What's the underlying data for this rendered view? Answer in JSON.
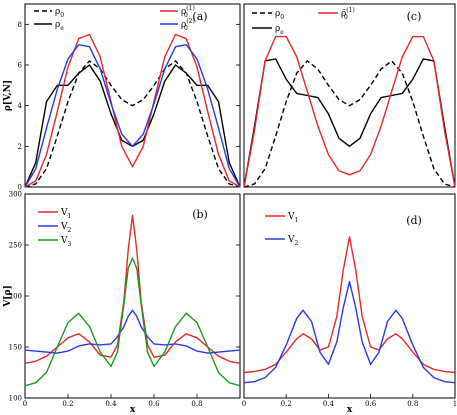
{
  "chart_data": [
    {
      "panel": "(a)",
      "type": "line",
      "xlim": [
        0,
        1
      ],
      "ylim": [
        0,
        9
      ],
      "xticks": [],
      "yticks": [
        0,
        2,
        4,
        6,
        8
      ],
      "ytick_labels": [
        "0",
        "2",
        "4",
        "6",
        "8"
      ],
      "ylabel": "ρ[V,N]",
      "xlabel": "",
      "legend": [
        {
          "label": "ρ",
          "sub": "0",
          "sup": "",
          "style": "dashed",
          "color": "#000000"
        },
        {
          "label": "ρ",
          "sub": "e",
          "sup": "",
          "style": "solid",
          "color": "#000000"
        },
        {
          "label": "ρ",
          "sub": "0",
          "sup": "(1)",
          "style": "solid",
          "color": "#e8272a"
        },
        {
          "label": "ρ",
          "sub": "0",
          "sup": "(2)",
          "style": "solid",
          "color": "#2a3ae0"
        }
      ],
      "series": [
        {
          "style": "dashed",
          "color": "#000000",
          "x": [
            0,
            0.05,
            0.1,
            0.15,
            0.2,
            0.25,
            0.3,
            0.35,
            0.4,
            0.45,
            0.5,
            0.55,
            0.6,
            0.65,
            0.7,
            0.75,
            0.8,
            0.85,
            0.9,
            0.95,
            1
          ],
          "y": [
            0,
            0.15,
            0.9,
            2.5,
            4.2,
            5.6,
            6.2,
            5.8,
            5.0,
            4.3,
            4.0,
            4.3,
            5.0,
            5.8,
            6.2,
            5.6,
            4.2,
            2.5,
            0.9,
            0.15,
            0
          ]
        },
        {
          "style": "solid",
          "color": "#000000",
          "x": [
            0,
            0.05,
            0.1,
            0.15,
            0.2,
            0.25,
            0.3,
            0.35,
            0.4,
            0.45,
            0.5,
            0.55,
            0.6,
            0.65,
            0.7,
            0.75,
            0.8,
            0.85,
            0.9,
            0.95,
            1
          ],
          "y": [
            0,
            1.2,
            4.2,
            5.0,
            5.0,
            5.6,
            6.0,
            5.2,
            3.6,
            2.3,
            2.0,
            2.3,
            3.6,
            5.2,
            6.0,
            5.6,
            5.0,
            5.0,
            4.2,
            1.2,
            0
          ]
        },
        {
          "style": "solid",
          "color": "#e8272a",
          "x": [
            0,
            0.05,
            0.1,
            0.15,
            0.2,
            0.25,
            0.3,
            0.35,
            0.4,
            0.45,
            0.5,
            0.55,
            0.6,
            0.65,
            0.7,
            0.75,
            0.8,
            0.85,
            0.9,
            0.95,
            1
          ],
          "y": [
            0,
            0.3,
            1.6,
            3.7,
            5.9,
            7.3,
            7.5,
            6.4,
            4.2,
            2.0,
            1.0,
            2.0,
            4.2,
            6.4,
            7.5,
            7.3,
            5.9,
            3.7,
            1.6,
            0.3,
            0
          ]
        },
        {
          "style": "solid",
          "color": "#2a3ae0",
          "x": [
            0,
            0.05,
            0.1,
            0.15,
            0.2,
            0.25,
            0.3,
            0.35,
            0.4,
            0.45,
            0.5,
            0.55,
            0.6,
            0.65,
            0.7,
            0.75,
            0.8,
            0.85,
            0.9,
            0.95,
            1
          ],
          "y": [
            0,
            0.9,
            2.9,
            4.8,
            6.3,
            7.0,
            6.9,
            5.8,
            4.1,
            2.6,
            2.0,
            2.6,
            4.1,
            5.8,
            6.9,
            7.0,
            6.3,
            4.8,
            2.9,
            0.9,
            0
          ]
        }
      ]
    },
    {
      "panel": "(c)",
      "type": "line",
      "xlim": [
        0,
        1
      ],
      "ylim": [
        0,
        9
      ],
      "xticks": [],
      "yticks": [],
      "legend": [
        {
          "label": "ρ",
          "sub": "0",
          "sup": "",
          "style": "dashed",
          "color": "#000000"
        },
        {
          "label": "ρ",
          "sub": "e",
          "sup": "",
          "style": "solid",
          "color": "#000000"
        },
        {
          "label": "ρ̃",
          "sub": "0",
          "sup": "(1)",
          "style": "solid",
          "color": "#e8272a"
        }
      ],
      "series": [
        {
          "style": "dashed",
          "color": "#000000",
          "x": [
            0,
            0.05,
            0.1,
            0.15,
            0.2,
            0.25,
            0.3,
            0.35,
            0.4,
            0.45,
            0.5,
            0.55,
            0.6,
            0.65,
            0.7,
            0.75,
            0.8,
            0.85,
            0.9,
            0.95,
            1
          ],
          "y": [
            0,
            0.15,
            0.9,
            2.5,
            4.2,
            5.6,
            6.2,
            5.8,
            5.0,
            4.3,
            4.0,
            4.3,
            5.0,
            5.8,
            6.2,
            5.6,
            4.2,
            2.5,
            0.9,
            0.15,
            0
          ]
        },
        {
          "style": "solid",
          "color": "#000000",
          "x": [
            0,
            0.05,
            0.1,
            0.15,
            0.2,
            0.25,
            0.3,
            0.35,
            0.4,
            0.45,
            0.5,
            0.55,
            0.6,
            0.65,
            0.7,
            0.75,
            0.8,
            0.85,
            0.9,
            0.95,
            1
          ],
          "y": [
            0,
            3.0,
            6.2,
            6.3,
            5.3,
            4.6,
            4.5,
            4.4,
            3.6,
            2.4,
            2.0,
            2.4,
            3.6,
            4.4,
            4.5,
            4.6,
            5.3,
            6.3,
            6.2,
            3.0,
            0
          ]
        },
        {
          "style": "solid",
          "color": "#e8272a",
          "x": [
            0,
            0.05,
            0.1,
            0.15,
            0.2,
            0.25,
            0.3,
            0.35,
            0.4,
            0.45,
            0.5,
            0.55,
            0.6,
            0.65,
            0.7,
            0.75,
            0.8,
            0.85,
            0.9,
            0.95,
            1
          ],
          "y": [
            0,
            2.8,
            6.2,
            7.4,
            7.4,
            6.4,
            4.7,
            3.0,
            1.6,
            0.8,
            0.6,
            0.8,
            1.6,
            3.0,
            4.7,
            6.4,
            7.4,
            7.4,
            6.2,
            2.8,
            0
          ]
        }
      ]
    },
    {
      "panel": "(b)",
      "type": "line",
      "xlim": [
        0,
        1
      ],
      "ylim": [
        100,
        300
      ],
      "xticks": [
        0,
        0.2,
        0.4,
        0.6,
        0.8
      ],
      "xtick_labels": [
        "0",
        "0.2",
        "0.4",
        "0.6",
        "0.8"
      ],
      "yticks": [
        100,
        150,
        200,
        250,
        300
      ],
      "ytick_labels": [
        "100",
        "150",
        "200",
        "250",
        "300"
      ],
      "ylabel": "V[ρ]",
      "xlabel": "x",
      "legend": [
        {
          "label": "V",
          "sub": "1",
          "sup": "",
          "style": "solid",
          "color": "#e8272a"
        },
        {
          "label": "V",
          "sub": "2",
          "sup": "",
          "style": "solid",
          "color": "#2a3ae0"
        },
        {
          "label": "V",
          "sub": "3",
          "sup": "",
          "style": "solid",
          "color": "#1a9a1a"
        }
      ],
      "series": [
        {
          "style": "solid",
          "color": "#e8272a",
          "x": [
            0,
            0.05,
            0.1,
            0.15,
            0.2,
            0.25,
            0.3,
            0.35,
            0.4,
            0.43,
            0.46,
            0.48,
            0.5,
            0.52,
            0.54,
            0.57,
            0.6,
            0.65,
            0.7,
            0.75,
            0.8,
            0.85,
            0.9,
            0.95,
            1
          ],
          "y": [
            134,
            136,
            141,
            150,
            159,
            163,
            155,
            142,
            140,
            152,
            195,
            245,
            279,
            245,
            195,
            152,
            140,
            142,
            155,
            163,
            159,
            150,
            141,
            136,
            134
          ]
        },
        {
          "style": "solid",
          "color": "#2a3ae0",
          "x": [
            0,
            0.05,
            0.1,
            0.15,
            0.2,
            0.25,
            0.3,
            0.35,
            0.4,
            0.43,
            0.46,
            0.48,
            0.5,
            0.52,
            0.54,
            0.57,
            0.6,
            0.65,
            0.7,
            0.75,
            0.8,
            0.85,
            0.9,
            0.95,
            1
          ],
          "y": [
            147,
            146,
            145,
            144,
            146,
            151,
            153,
            152,
            153,
            160,
            170,
            180,
            186,
            180,
            170,
            160,
            153,
            152,
            153,
            151,
            146,
            144,
            145,
            146,
            147
          ]
        },
        {
          "style": "solid",
          "color": "#1a9a1a",
          "x": [
            0,
            0.05,
            0.1,
            0.15,
            0.2,
            0.25,
            0.3,
            0.35,
            0.4,
            0.43,
            0.46,
            0.48,
            0.5,
            0.52,
            0.54,
            0.57,
            0.6,
            0.65,
            0.7,
            0.75,
            0.8,
            0.85,
            0.9,
            0.95,
            1
          ],
          "y": [
            112,
            115,
            125,
            150,
            174,
            183,
            170,
            145,
            131,
            145,
            192,
            227,
            237,
            227,
            192,
            145,
            131,
            145,
            170,
            183,
            174,
            150,
            125,
            115,
            112
          ]
        }
      ]
    },
    {
      "panel": "(d)",
      "type": "line",
      "xlim": [
        0,
        1
      ],
      "ylim": [
        100,
        300
      ],
      "xticks": [
        0,
        0.2,
        0.4,
        0.6,
        0.8,
        1
      ],
      "xtick_labels": [
        "0",
        "0.2",
        "0.4",
        "0.6",
        "0.8",
        "1"
      ],
      "yticks": [],
      "xlabel": "x",
      "legend": [
        {
          "label": "V",
          "sub": "1",
          "sup": "",
          "style": "solid",
          "color": "#e8272a"
        },
        {
          "label": "V",
          "sub": "2",
          "sup": "",
          "style": "solid",
          "color": "#2a3ae0"
        }
      ],
      "series": [
        {
          "style": "solid",
          "color": "#e8272a",
          "x": [
            0,
            0.05,
            0.1,
            0.15,
            0.2,
            0.25,
            0.28,
            0.32,
            0.36,
            0.4,
            0.44,
            0.47,
            0.5,
            0.53,
            0.56,
            0.6,
            0.64,
            0.68,
            0.72,
            0.75,
            0.8,
            0.85,
            0.9,
            0.95,
            1
          ],
          "y": [
            125,
            126,
            128,
            133,
            145,
            158,
            163,
            158,
            147,
            150,
            180,
            225,
            258,
            225,
            180,
            150,
            147,
            158,
            163,
            158,
            145,
            133,
            128,
            126,
            125
          ]
        },
        {
          "style": "solid",
          "color": "#2a3ae0",
          "x": [
            0,
            0.05,
            0.1,
            0.15,
            0.2,
            0.25,
            0.28,
            0.32,
            0.36,
            0.4,
            0.44,
            0.47,
            0.5,
            0.53,
            0.56,
            0.6,
            0.64,
            0.68,
            0.72,
            0.75,
            0.8,
            0.85,
            0.9,
            0.95,
            1
          ],
          "y": [
            115,
            116,
            120,
            130,
            152,
            178,
            186,
            175,
            145,
            133,
            155,
            188,
            214,
            188,
            155,
            133,
            145,
            175,
            186,
            178,
            152,
            130,
            120,
            116,
            115
          ]
        }
      ]
    }
  ]
}
